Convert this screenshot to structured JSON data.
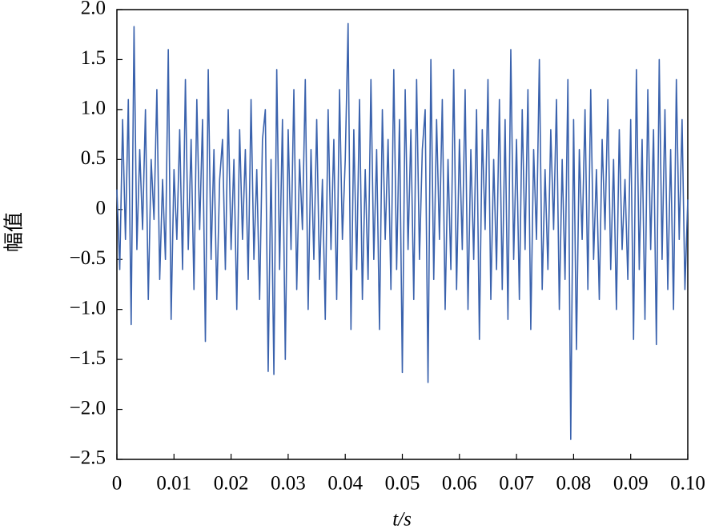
{
  "chart_data": {
    "type": "line",
    "xlabel": "t/s",
    "ylabel": "幅值",
    "xlim": [
      0,
      0.1
    ],
    "ylim": [
      -2.5,
      2.0
    ],
    "xticks": [
      0,
      0.01,
      0.02,
      0.03,
      0.04,
      0.05,
      0.06,
      0.07,
      0.08,
      0.09,
      {
        "value": 0.1,
        "label": "0.10"
      }
    ],
    "yticks": [
      {
        "value": 2,
        "label": "2.0"
      },
      1.5,
      {
        "value": 1,
        "label": "1.0"
      },
      0.5,
      0,
      {
        "value": -0.5,
        "label": "−0.5"
      },
      {
        "value": -1,
        "label": "−1.0"
      },
      {
        "value": -1.5,
        "label": "−1.5"
      },
      {
        "value": -2,
        "label": "−2.0"
      },
      {
        "value": -2.5,
        "label": "−2.5"
      }
    ],
    "grid": false,
    "x": [
      0,
      0.0005,
      0.001,
      0.0015,
      0.002,
      0.0025,
      0.003,
      0.0035,
      0.004,
      0.0045,
      0.005,
      0.0055,
      0.006,
      0.0065,
      0.007,
      0.0075,
      0.008,
      0.0085,
      0.009,
      0.0095,
      0.01,
      0.0105,
      0.011,
      0.0115,
      0.012,
      0.0125,
      0.013,
      0.0135,
      0.014,
      0.0145,
      0.015,
      0.0155,
      0.016,
      0.0165,
      0.017,
      0.0175,
      0.018,
      0.0185,
      0.019,
      0.0195,
      0.02,
      0.0205,
      0.021,
      0.0215,
      0.022,
      0.0225,
      0.023,
      0.0235,
      0.024,
      0.0245,
      0.025,
      0.0255,
      0.026,
      0.0265,
      0.027,
      0.0275,
      0.028,
      0.0285,
      0.029,
      0.0295,
      0.03,
      0.0305,
      0.031,
      0.0315,
      0.032,
      0.0325,
      0.033,
      0.0335,
      0.034,
      0.0345,
      0.035,
      0.0355,
      0.036,
      0.0365,
      0.037,
      0.0375,
      0.038,
      0.0385,
      0.039,
      0.0395,
      0.04,
      0.0405,
      0.041,
      0.0415,
      0.042,
      0.0425,
      0.043,
      0.0435,
      0.044,
      0.0445,
      0.045,
      0.0455,
      0.046,
      0.0465,
      0.047,
      0.0475,
      0.048,
      0.0485,
      0.049,
      0.0495,
      0.05,
      0.0505,
      0.051,
      0.0515,
      0.052,
      0.0525,
      0.053,
      0.0535,
      0.054,
      0.0545,
      0.055,
      0.0555,
      0.056,
      0.0565,
      0.057,
      0.0575,
      0.058,
      0.0585,
      0.059,
      0.0595,
      0.06,
      0.0605,
      0.061,
      0.0615,
      0.062,
      0.0625,
      0.063,
      0.0635,
      0.064,
      0.0645,
      0.065,
      0.0655,
      0.066,
      0.0665,
      0.067,
      0.0675,
      0.068,
      0.0685,
      0.069,
      0.0695,
      0.07,
      0.0705,
      0.071,
      0.0715,
      0.072,
      0.0725,
      0.073,
      0.0735,
      0.074,
      0.0745,
      0.075,
      0.0755,
      0.076,
      0.0765,
      0.077,
      0.0775,
      0.078,
      0.0785,
      0.079,
      0.0795,
      0.08,
      0.0805,
      0.081,
      0.0815,
      0.082,
      0.0825,
      0.083,
      0.0835,
      0.084,
      0.0845,
      0.085,
      0.0855,
      0.086,
      0.0865,
      0.087,
      0.0875,
      0.088,
      0.0885,
      0.089,
      0.0895,
      0.09,
      0.0905,
      0.091,
      0.0915,
      0.092,
      0.0925,
      0.093,
      0.0935,
      0.094,
      0.0945,
      0.095,
      0.0955,
      0.096,
      0.0965,
      0.097,
      0.0975,
      0.098,
      0.0985,
      0.099,
      0.0995,
      0.1
    ],
    "series": [
      {
        "color": "#3a62ad",
        "values": [
          0.2,
          -0.6,
          0.9,
          -0.3,
          1.1,
          -1.15,
          1.83,
          -0.4,
          0.6,
          -0.2,
          1.0,
          -0.9,
          0.5,
          -0.1,
          1.2,
          -0.7,
          0.3,
          -0.5,
          1.6,
          -1.1,
          0.4,
          -0.3,
          0.8,
          -0.6,
          1.3,
          -0.4,
          0.7,
          -0.8,
          1.1,
          -0.2,
          0.9,
          -1.32,
          1.4,
          -0.5,
          0.6,
          -0.9,
          0.3,
          0.7,
          -0.6,
          1.0,
          -0.4,
          0.5,
          -1.0,
          0.8,
          -0.3,
          0.6,
          -0.7,
          1.1,
          -0.5,
          0.4,
          -0.9,
          0.7,
          1.0,
          -1.62,
          0.5,
          -1.65,
          1.4,
          -0.6,
          0.9,
          -1.5,
          0.8,
          -0.4,
          1.2,
          -0.8,
          0.5,
          -0.2,
          1.3,
          -1.0,
          0.6,
          -0.5,
          0.9,
          -0.7,
          0.3,
          -1.1,
          1.0,
          -0.4,
          0.7,
          -0.9,
          1.2,
          -0.3,
          0.5,
          1.86,
          -1.2,
          0.8,
          -0.6,
          1.1,
          -0.9,
          0.4,
          -0.7,
          1.3,
          -0.5,
          0.6,
          -1.2,
          1.0,
          -0.3,
          0.7,
          -0.8,
          1.4,
          -0.6,
          0.9,
          -1.63,
          1.2,
          -0.4,
          0.8,
          -0.9,
          1.3,
          -0.5,
          0.6,
          1.0,
          -1.73,
          1.5,
          -0.7,
          0.9,
          -0.3,
          1.1,
          -1.0,
          0.5,
          -0.6,
          1.4,
          -0.8,
          0.7,
          -0.4,
          1.2,
          -1.0,
          0.6,
          -0.5,
          1.0,
          -1.3,
          0.8,
          -0.2,
          1.3,
          -0.9,
          0.5,
          -0.6,
          1.1,
          -0.8,
          0.9,
          -1.1,
          1.6,
          -0.5,
          0.7,
          -0.9,
          1.0,
          -0.4,
          1.2,
          -1.2,
          0.6,
          -0.3,
          1.5,
          -0.8,
          0.4,
          -0.6,
          0.8,
          -0.2,
          1.1,
          -1.0,
          0.5,
          -0.7,
          1.3,
          -2.3,
          0.9,
          -1.4,
          0.6,
          -0.3,
          1.0,
          -0.8,
          1.2,
          -0.5,
          0.4,
          -0.9,
          0.7,
          -0.2,
          1.1,
          -0.6,
          0.5,
          -1.0,
          0.8,
          -0.4,
          0.3,
          -0.7,
          0.9,
          -1.3,
          1.4,
          -0.6,
          0.7,
          -1.1,
          1.2,
          -0.4,
          0.8,
          -1.35,
          1.5,
          -0.5,
          1.0,
          -0.8,
          0.6,
          -1.0,
          1.3,
          -0.3,
          0.9,
          -0.8,
          0.1
        ]
      }
    ]
  }
}
